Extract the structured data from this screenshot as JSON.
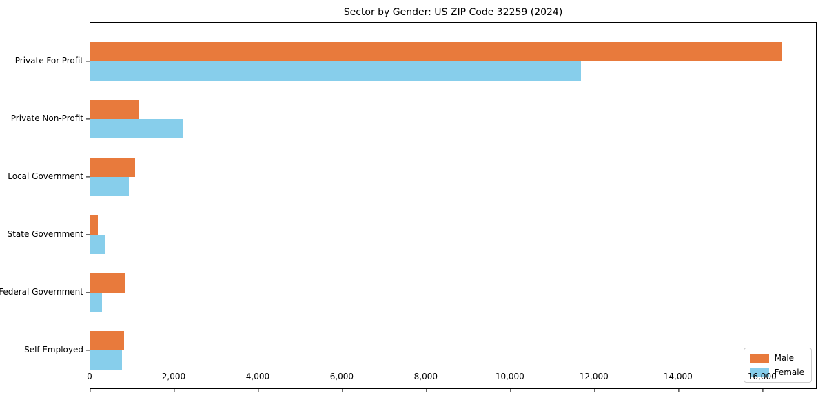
{
  "chart_data": {
    "type": "bar",
    "orientation": "horizontal",
    "title": "Sector by Gender: US ZIP Code 32259 (2024)",
    "categories": [
      "Private For-Profit",
      "Private Non-Profit",
      "Local Government",
      "State Government",
      "Federal Government",
      "Self-Employed"
    ],
    "series": [
      {
        "name": "Male",
        "color": "#E87A3C",
        "values": [
          16460,
          1160,
          1060,
          180,
          820,
          800
        ]
      },
      {
        "name": "Female",
        "color": "#87CEEB",
        "values": [
          11670,
          2210,
          920,
          360,
          280,
          750
        ]
      }
    ],
    "xlabel": "",
    "ylabel": "",
    "xlim": [
      0,
      17300
    ],
    "x_ticks": [
      0,
      2000,
      4000,
      6000,
      8000,
      10000,
      12000,
      14000,
      16000
    ],
    "x_tick_labels": [
      "0",
      "2,000",
      "4,000",
      "6,000",
      "8,000",
      "10,000",
      "12,000",
      "14,000",
      "16,000"
    ],
    "grid": "off",
    "legend_position": "lower right",
    "legend_entries": [
      "Male",
      "Female"
    ]
  }
}
